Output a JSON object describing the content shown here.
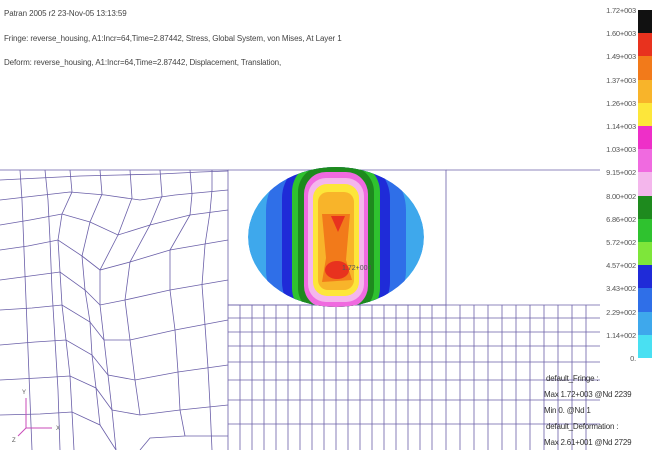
{
  "header": {
    "line1": "Patran 2005 r2 23-Nov-05 13:13:59",
    "line2": "Fringe: reverse_housing, A1:Incr=64,Time=2.87442, Stress, Global System, von Mises, At Layer 1",
    "line3": "Deform: reverse_housing, A1:Incr=64,Time=2.87442, Displacement, Translation,"
  },
  "legend": {
    "items": [
      {
        "label": "1.72+003",
        "color": "#111111"
      },
      {
        "label": "1.60+003",
        "color": "#e8321e"
      },
      {
        "label": "1.49+003",
        "color": "#f27a1a"
      },
      {
        "label": "1.37+003",
        "color": "#f8b42a"
      },
      {
        "label": "1.26+003",
        "color": "#fde63a"
      },
      {
        "label": "1.14+003",
        "color": "#ee2fc8"
      },
      {
        "label": "1.03+003",
        "color": "#f06ae0"
      },
      {
        "label": "9.15+002",
        "color": "#f4b6ec"
      },
      {
        "label": "8.00+002",
        "color": "#1e8a1e"
      },
      {
        "label": "6.86+002",
        "color": "#2fc22f"
      },
      {
        "label": "5.72+002",
        "color": "#7ee63a"
      },
      {
        "label": "4.57+002",
        "color": "#1f2bd8"
      },
      {
        "label": "3.43+002",
        "color": "#2f6fe8"
      },
      {
        "label": "2.29+002",
        "color": "#3ea8ec"
      },
      {
        "label": "1.14+002",
        "color": "#49e0f2"
      },
      {
        "label": "0.",
        "color": "#ffffff"
      }
    ]
  },
  "contour": {
    "peak_label": "1.72+003"
  },
  "info": {
    "fringe_title": "default_Fringe :",
    "fringe_max": "Max 1.72+003 @Nd 2239",
    "fringe_min": "Min 0. @Nd 1",
    "deform_title": "default_Deformation :",
    "deform_max": "Max 2.61+001 @Nd 2729"
  },
  "axes": {
    "y": "Y",
    "x": "X",
    "z": "Z"
  }
}
